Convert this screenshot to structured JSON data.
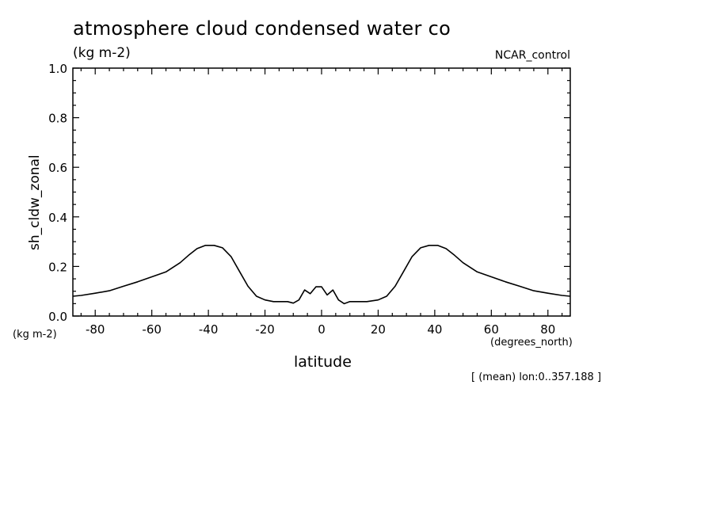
{
  "chart_data": {
    "type": "line",
    "title": "atmosphere cloud condensed water co",
    "units_label": "(kg m-2)",
    "dataset": "NCAR_control",
    "xlabel": "latitude",
    "ylabel": "sh_cldw_zonal",
    "x_units": "(degrees_north)",
    "y_units": "(kg m-2)",
    "footnote": "[ (mean) lon:0..357.188 ]",
    "xlim": [
      -87.9,
      87.9
    ],
    "ylim": [
      0,
      1.0
    ],
    "x_ticks": [
      -80,
      -60,
      -40,
      -20,
      0,
      20,
      40,
      60,
      80
    ],
    "x_tick_labels": [
      "-80",
      "-60",
      "-40",
      "-20",
      "0",
      "20",
      "40",
      "60",
      "80"
    ],
    "y_ticks": [
      0,
      0.2,
      0.4,
      0.6,
      0.8,
      1.0
    ],
    "y_tick_labels": [
      "0.0",
      "0.2",
      "0.4",
      "0.6",
      "0.8",
      "1.0"
    ],
    "grid": false,
    "series": [
      {
        "name": "sh_cldw_zonal",
        "x": [
          -87.9,
          -85,
          -80,
          -75,
          -70,
          -65,
          -60,
          -55,
          -50,
          -47,
          -44,
          -41,
          -38,
          -35,
          -32,
          -29,
          -26,
          -23,
          -20,
          -17,
          -14,
          -12,
          -10,
          -8,
          -6,
          -4,
          -2,
          0,
          2,
          4,
          6,
          8,
          10,
          12,
          14,
          16,
          20,
          23,
          26,
          29,
          32,
          35,
          38,
          41,
          44,
          47,
          50,
          55,
          60,
          65,
          70,
          75,
          80,
          85,
          87.9
        ],
        "values": [
          0.08,
          0.083,
          0.092,
          0.102,
          0.12,
          0.138,
          0.158,
          0.178,
          0.215,
          0.245,
          0.272,
          0.285,
          0.285,
          0.275,
          0.24,
          0.18,
          0.12,
          0.08,
          0.065,
          0.058,
          0.058,
          0.058,
          0.052,
          0.065,
          0.105,
          0.09,
          0.118,
          0.118,
          0.085,
          0.105,
          0.065,
          0.05,
          0.058,
          0.058,
          0.058,
          0.058,
          0.065,
          0.08,
          0.12,
          0.18,
          0.24,
          0.275,
          0.285,
          0.285,
          0.272,
          0.245,
          0.215,
          0.178,
          0.158,
          0.138,
          0.12,
          0.102,
          0.092,
          0.083,
          0.08
        ]
      }
    ]
  }
}
